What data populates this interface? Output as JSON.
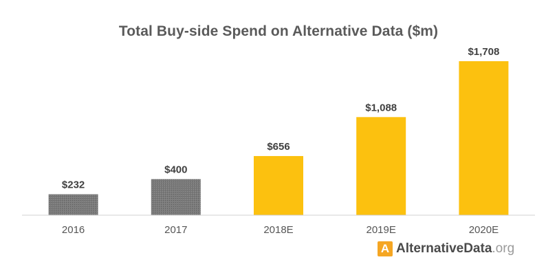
{
  "chart_data": {
    "type": "bar",
    "title": "Total Buy-side Spend on Alternative Data ($m)",
    "categories": [
      "2016",
      "2017",
      "2018E",
      "2019E",
      "2020E"
    ],
    "values": [
      232,
      400,
      656,
      1088,
      1708
    ],
    "data_labels": [
      "$232",
      "$400",
      "$656",
      "$1,088",
      "$1,708"
    ],
    "bar_colors": [
      "#7b7b7b",
      "#7b7b7b",
      "#fcc10f",
      "#fcc10f",
      "#fcc10f"
    ],
    "bar_pattern": [
      "hatched",
      "hatched",
      "solid",
      "solid",
      "solid"
    ],
    "xlabel": "",
    "ylabel": "",
    "ylim": [
      0,
      1708
    ],
    "grid": false
  },
  "branding": {
    "logo_letter": "A",
    "name": "AlternativeData",
    "tld": ".org",
    "logo_color": "#f5a623"
  }
}
